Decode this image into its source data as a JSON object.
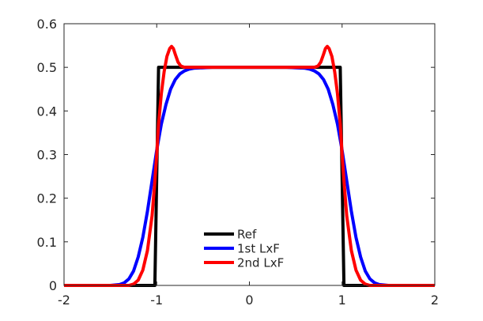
{
  "chart_data": {
    "type": "line",
    "title": "",
    "xlabel": "",
    "ylabel": "",
    "xlim": [
      -2,
      2
    ],
    "ylim": [
      0,
      0.6
    ],
    "x_ticks": [
      -2,
      -1,
      0,
      1,
      2
    ],
    "y_ticks": [
      0,
      0.1,
      0.2,
      0.3,
      0.4,
      0.5,
      0.6
    ],
    "x_tick_labels": [
      "-2",
      "-1",
      "0",
      "1",
      "2"
    ],
    "y_tick_labels": [
      "0",
      "0.1",
      "0.2",
      "0.3",
      "0.4",
      "0.5",
      "0.6"
    ],
    "grid": false,
    "legend_position": "lower-center",
    "series": [
      {
        "name": "Ref",
        "color": "#000000",
        "x": [
          -2,
          -1.02,
          -1.0,
          -0.98,
          0.98,
          1.0,
          1.02,
          2
        ],
        "y": [
          0,
          0,
          0.25,
          0.5,
          0.5,
          0.25,
          0,
          0
        ]
      },
      {
        "name": "1st LxF",
        "color": "#0000ff",
        "x": [
          -2,
          -1.5,
          -1.4,
          -1.35,
          -1.3,
          -1.25,
          -1.2,
          -1.15,
          -1.1,
          -1.05,
          -1.0,
          -0.95,
          -0.9,
          -0.85,
          -0.8,
          -0.75,
          -0.7,
          -0.65,
          -0.6,
          -0.5,
          -0.4,
          -0.3,
          -0.2,
          0,
          0.2,
          0.3,
          0.4,
          0.5,
          0.6,
          0.65,
          0.7,
          0.75,
          0.8,
          0.85,
          0.9,
          0.95,
          1.0,
          1.05,
          1.1,
          1.15,
          1.2,
          1.25,
          1.3,
          1.35,
          1.4,
          1.5,
          2
        ],
        "y": [
          0,
          0,
          0.002,
          0.006,
          0.015,
          0.033,
          0.065,
          0.11,
          0.17,
          0.24,
          0.31,
          0.37,
          0.415,
          0.45,
          0.472,
          0.485,
          0.492,
          0.496,
          0.498,
          0.499,
          0.5,
          0.5,
          0.5,
          0.5,
          0.5,
          0.5,
          0.5,
          0.499,
          0.498,
          0.496,
          0.492,
          0.485,
          0.472,
          0.45,
          0.415,
          0.37,
          0.31,
          0.24,
          0.17,
          0.11,
          0.065,
          0.033,
          0.015,
          0.006,
          0.002,
          0,
          0
        ]
      },
      {
        "name": "2nd LxF",
        "color": "#ff0000",
        "x": [
          -2,
          -1.3,
          -1.25,
          -1.2,
          -1.15,
          -1.1,
          -1.05,
          -1.02,
          -1.0,
          -0.98,
          -0.95,
          -0.92,
          -0.89,
          -0.86,
          -0.84,
          -0.82,
          -0.8,
          -0.77,
          -0.74,
          -0.7,
          -0.65,
          -0.6,
          -0.5,
          0,
          0.5,
          0.6,
          0.65,
          0.7,
          0.74,
          0.77,
          0.8,
          0.82,
          0.84,
          0.86,
          0.89,
          0.92,
          0.95,
          0.98,
          1.0,
          1.02,
          1.05,
          1.1,
          1.15,
          1.2,
          1.25,
          1.3,
          2
        ],
        "y": [
          0,
          0,
          0.003,
          0.012,
          0.035,
          0.08,
          0.16,
          0.24,
          0.3,
          0.37,
          0.44,
          0.49,
          0.525,
          0.543,
          0.548,
          0.543,
          0.53,
          0.512,
          0.503,
          0.5,
          0.5,
          0.5,
          0.5,
          0.5,
          0.5,
          0.5,
          0.5,
          0.5,
          0.503,
          0.512,
          0.53,
          0.543,
          0.548,
          0.543,
          0.525,
          0.49,
          0.44,
          0.37,
          0.3,
          0.24,
          0.16,
          0.08,
          0.035,
          0.012,
          0.003,
          0,
          0
        ]
      }
    ]
  }
}
